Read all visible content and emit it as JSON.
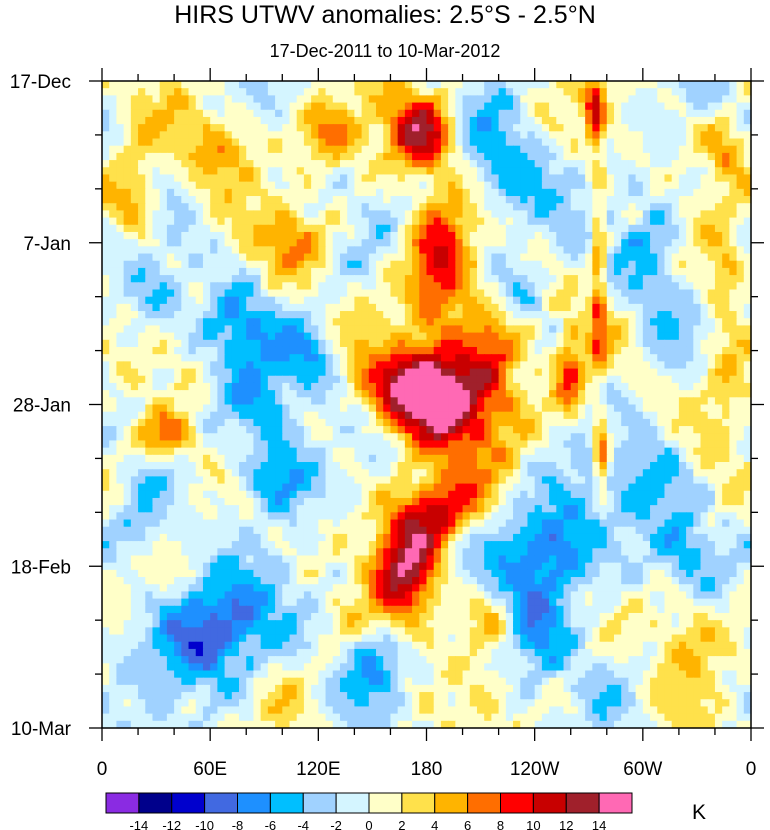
{
  "chart_data": {
    "type": "heatmap",
    "title": "HIRS UTWV anomalies: 2.5°S - 2.5°N",
    "subtitle": "17-Dec-2011 to 10-Mar-2012",
    "xlabel": "",
    "ylabel": "",
    "x_tick_labels": [
      "0",
      "60E",
      "120E",
      "180",
      "120W",
      "60W",
      "0"
    ],
    "x_range_degrees_east": [
      0,
      360
    ],
    "y_tick_labels": [
      "17-Dec",
      "7-Jan",
      "28-Jan",
      "18-Feb",
      "10-Mar"
    ],
    "y_range": [
      "17-Dec-2011",
      "10-Mar-2012"
    ],
    "y_direction": "time increases downward",
    "colorbar": {
      "unit": "K",
      "levels": [
        "-14",
        "-12",
        "-10",
        "-8",
        "-6",
        "-4",
        "-2",
        "0",
        "2",
        "4",
        "6",
        "8",
        "10",
        "12",
        "14"
      ],
      "colors": [
        "#8a2be2",
        "#00008b",
        "#0000cd",
        "#4169e1",
        "#1e90ff",
        "#00bfff",
        "#a0d2ff",
        "#d4f5ff",
        "#ffffc8",
        "#ffe14b",
        "#ffb400",
        "#ff6e00",
        "#ff0000",
        "#c80000",
        "#a0202b",
        "#ff69b4"
      ]
    },
    "features": [
      {
        "description": "band of strong positive anomalies (8 to >14 K) near 150E to 180, drifting over the period",
        "value_range": [
          8,
          15
        ]
      },
      {
        "description": "narrow positive streak near 75W",
        "value_range": [
          8,
          12
        ]
      },
      {
        "description": "negative anomalies over the Indian Ocean sector 20E to 100E in late February / March",
        "value_range": [
          -12,
          -4
        ]
      }
    ]
  }
}
